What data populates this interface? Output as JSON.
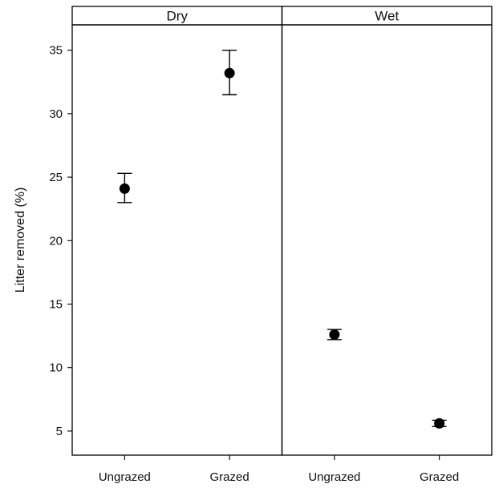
{
  "chart_data": {
    "type": "scatter",
    "ylabel": "Litter removed (%)",
    "ylim": [
      3.1,
      37
    ],
    "yticks": [
      5,
      10,
      15,
      20,
      25,
      30,
      35
    ],
    "categories": [
      "Ungrazed",
      "Grazed"
    ],
    "panels": [
      {
        "name": "Dry",
        "points": [
          {
            "category": "Ungrazed",
            "mean": 24.1,
            "lower": 23.0,
            "upper": 25.3
          },
          {
            "category": "Grazed",
            "mean": 33.2,
            "lower": 31.5,
            "upper": 35.0
          }
        ]
      },
      {
        "name": "Wet",
        "points": [
          {
            "category": "Ungrazed",
            "mean": 12.6,
            "lower": 12.2,
            "upper": 13.0
          },
          {
            "category": "Grazed",
            "mean": 5.6,
            "lower": 5.35,
            "upper": 5.85
          }
        ]
      }
    ],
    "grid": false,
    "legend": "none"
  }
}
